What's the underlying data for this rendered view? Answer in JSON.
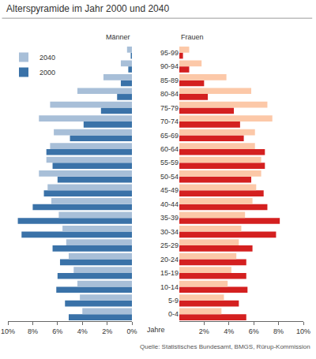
{
  "chart_data": {
    "type": "bar",
    "title": "Alterspyramide im Jahr 2000 und 2040",
    "orientation": "horizontal",
    "grid": false,
    "legend": "top left",
    "categories": [
      "0-4",
      "5-9",
      "10-14",
      "15-19",
      "20-24",
      "25-29",
      "30-34",
      "35-39",
      "40-44",
      "45-49",
      "50-54",
      "55-59",
      "60-64",
      "65-69",
      "70-74",
      "75-79",
      "80-84",
      "85-89",
      "90-94",
      "95-99"
    ],
    "annotations": [
      "Jahre",
      "Quelle: Statistisches Bundesamt, BMGS, Rürup-Kommission"
    ],
    "panels": [
      {
        "title": "Männer",
        "xlim": [
          10,
          0
        ],
        "xticks": [
          {
            "value": 10,
            "label": "10%"
          },
          {
            "value": 8,
            "label": "8%"
          },
          {
            "value": 6,
            "label": "6%"
          },
          {
            "value": 4,
            "label": "4%"
          },
          {
            "value": 2,
            "label": "2%"
          },
          {
            "value": 0,
            "label": "0%"
          }
        ],
        "series": [
          {
            "name": "2000",
            "color": "#3a72a8",
            "values": [
              5.1,
              5.4,
              6.1,
              6.0,
              5.8,
              6.4,
              8.9,
              9.2,
              8.0,
              7.1,
              6.0,
              6.4,
              6.9,
              5.0,
              3.9,
              2.5,
              1.2,
              0.9,
              0.3,
              0.1
            ]
          },
          {
            "name": "2040",
            "color": "#a8bfd8",
            "values": [
              4.0,
              4.2,
              4.4,
              4.7,
              5.1,
              5.3,
              5.6,
              5.9,
              6.5,
              6.8,
              7.5,
              6.9,
              6.6,
              6.3,
              7.5,
              6.6,
              4.4,
              2.3,
              0.9,
              0.4
            ]
          }
        ]
      },
      {
        "title": "Frauen",
        "xlim": [
          0,
          10
        ],
        "xticks": [
          {
            "value": 2,
            "label": "2%"
          },
          {
            "value": 4,
            "label": "4%"
          },
          {
            "value": 6,
            "label": "6%"
          },
          {
            "value": 8,
            "label": "8%"
          },
          {
            "value": 10,
            "label": "10%"
          }
        ],
        "series": [
          {
            "name": "2000",
            "color": "#d42020",
            "values": [
              5.4,
              4.8,
              5.5,
              5.4,
              5.4,
              5.9,
              7.8,
              8.1,
              7.1,
              6.8,
              5.8,
              6.9,
              6.9,
              5.2,
              4.9,
              4.4,
              2.3,
              2.0,
              0.8,
              0.3
            ]
          },
          {
            "name": "2040",
            "color": "#fcc8a8",
            "values": [
              3.4,
              3.6,
              3.9,
              4.2,
              4.6,
              4.8,
              5.0,
              5.3,
              5.9,
              6.2,
              6.6,
              6.6,
              6.1,
              6.1,
              7.5,
              7.1,
              5.8,
              3.8,
              1.8,
              0.8
            ]
          }
        ]
      }
    ]
  }
}
